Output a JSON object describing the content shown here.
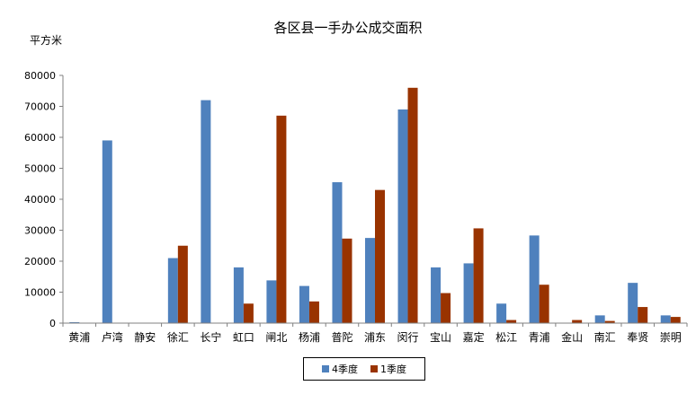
{
  "chart_data": {
    "type": "bar",
    "title": "各区县一手办公成交面积",
    "ylabel": "平方米",
    "xlabel": "",
    "ylim": [
      0,
      80000
    ],
    "yticks": [
      0,
      10000,
      20000,
      30000,
      40000,
      50000,
      60000,
      70000,
      80000
    ],
    "categories": [
      "黄浦",
      "卢湾",
      "静安",
      "徐汇",
      "长宁",
      "虹口",
      "闸北",
      "杨浦",
      "普陀",
      "浦东",
      "闵行",
      "宝山",
      "嘉定",
      "松江",
      "青浦",
      "金山",
      "南汇",
      "奉贤",
      "崇明"
    ],
    "series": [
      {
        "name": "4季度",
        "color": "#4F81BD",
        "values": [
          300,
          59000,
          0,
          21000,
          72000,
          18000,
          13800,
          12000,
          45500,
          27500,
          69000,
          18000,
          19300,
          6300,
          28300,
          0,
          2500,
          13000,
          2500
        ]
      },
      {
        "name": "1季度",
        "color": "#993300",
        "values": [
          0,
          0,
          0,
          25000,
          0,
          6300,
          67000,
          7000,
          27300,
          43000,
          76000,
          9700,
          30600,
          1000,
          12400,
          1000,
          700,
          5200,
          2000
        ]
      }
    ],
    "legend_position": "bottom",
    "grid": false
  }
}
